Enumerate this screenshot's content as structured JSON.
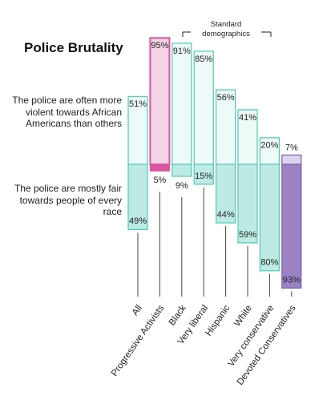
{
  "chart_data": {
    "type": "diverging-bar",
    "title": "Police Brutality",
    "annotation": "Standard demographics",
    "categories": [
      "All",
      "Progressive Activists",
      "Black",
      "Very liberal",
      "Hispanic",
      "White",
      "Very conservative",
      "Devoted Conservatives"
    ],
    "category_colors": [
      "#222222",
      "#c4358f",
      "#222222",
      "#222222",
      "#222222",
      "#222222",
      "#222222",
      "#5b3fa0"
    ],
    "stroke_colors": [
      "#4fc9b6",
      "#d8579f",
      "#4fc9b6",
      "#4fc9b6",
      "#4fc9b6",
      "#4fc9b6",
      "#4fc9b6",
      "#7a5fae"
    ],
    "series": [
      {
        "name": "The police are often more violent towards African Americans than others",
        "position": "up",
        "colors": [
          "#eefaf8",
          "#f4d3e6",
          "#eefaf8",
          "#eefaf8",
          "#eefaf8",
          "#eefaf8",
          "#eefaf8",
          "#ddd3ec"
        ],
        "values": [
          51,
          95,
          91,
          85,
          56,
          41,
          20,
          7
        ],
        "value_labels": [
          "51%",
          "95%",
          "91%",
          "85%",
          "56%",
          "41%",
          "20%",
          "7%"
        ]
      },
      {
        "name": "The police are mostly fair towards people of every race",
        "position": "down",
        "colors": [
          "#bdebe3",
          "#d8579f",
          "#bdebe3",
          "#bdebe3",
          "#bdebe3",
          "#bdebe3",
          "#bdebe3",
          "#9a82c4"
        ],
        "values": [
          49,
          5,
          9,
          15,
          44,
          59,
          80,
          93
        ],
        "value_labels": [
          "49%",
          "5%",
          "9%",
          "15%",
          "44%",
          "59%",
          "80%",
          "93%"
        ]
      }
    ]
  }
}
